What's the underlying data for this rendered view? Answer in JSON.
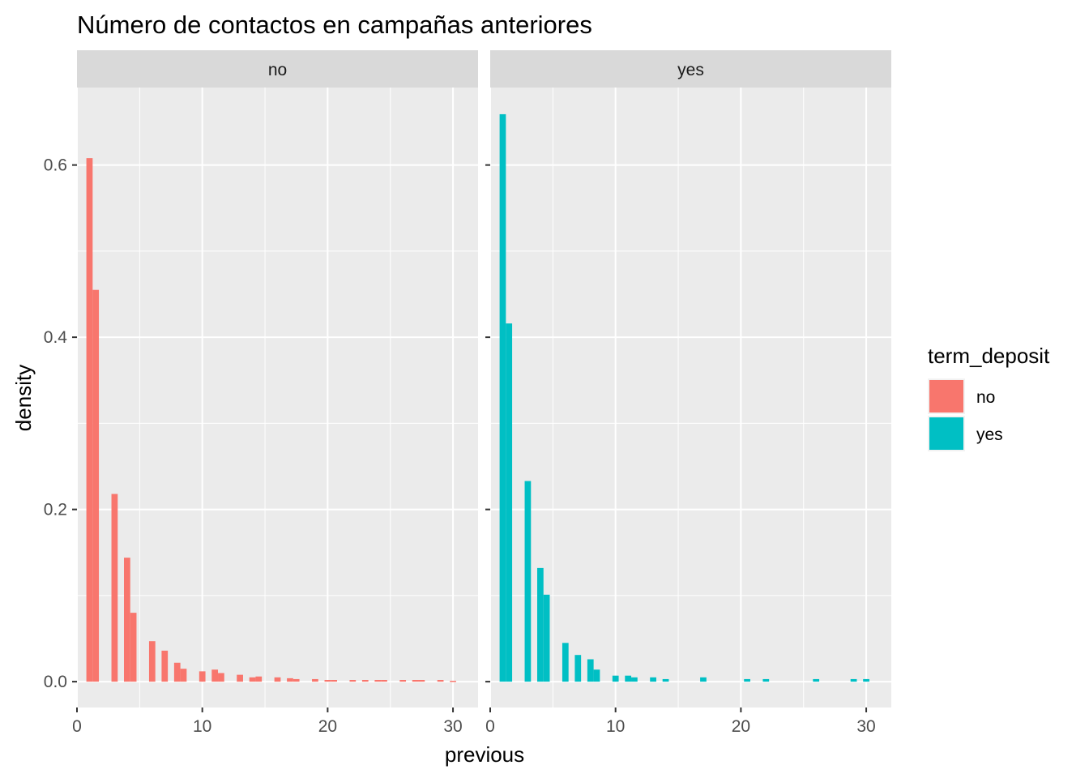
{
  "chart_data": {
    "type": "bar",
    "title": "Número de contactos en campañas anteriores",
    "xlabel": "previous",
    "ylabel": "density",
    "xlim": [
      0,
      32
    ],
    "ylim": [
      -0.03,
      0.69
    ],
    "x_ticks": [
      0,
      10,
      20,
      30
    ],
    "y_ticks": [
      0.0,
      0.2,
      0.4,
      0.6
    ],
    "x_tick_labels": [
      "0",
      "10",
      "20",
      "30"
    ],
    "y_tick_labels": [
      "0.0",
      "0.2",
      "0.4",
      "0.6"
    ],
    "grid": true,
    "legend": {
      "title": "term_deposit",
      "position": "right",
      "entries": [
        {
          "label": "no",
          "color": "#F8766D"
        },
        {
          "label": "yes",
          "color": "#00BFC4"
        }
      ]
    },
    "panels": [
      {
        "strip": "no",
        "color": "#F8766D",
        "bin_width": 0.5,
        "bins": [
          {
            "x": 1,
            "y": 0.608
          },
          {
            "x": 1.5,
            "y": 0.455
          },
          {
            "x": 3,
            "y": 0.218
          },
          {
            "x": 4,
            "y": 0.144
          },
          {
            "x": 4.5,
            "y": 0.08
          },
          {
            "x": 6,
            "y": 0.047
          },
          {
            "x": 7,
            "y": 0.036
          },
          {
            "x": 8,
            "y": 0.022
          },
          {
            "x": 8.5,
            "y": 0.015
          },
          {
            "x": 10,
            "y": 0.012
          },
          {
            "x": 11,
            "y": 0.014
          },
          {
            "x": 11.5,
            "y": 0.01
          },
          {
            "x": 13,
            "y": 0.008
          },
          {
            "x": 14,
            "y": 0.005
          },
          {
            "x": 14.5,
            "y": 0.006
          },
          {
            "x": 16,
            "y": 0.005
          },
          {
            "x": 17,
            "y": 0.004
          },
          {
            "x": 17.5,
            "y": 0.003
          },
          {
            "x": 19,
            "y": 0.003
          },
          {
            "x": 20,
            "y": 0.002
          },
          {
            "x": 20.5,
            "y": 0.002
          },
          {
            "x": 22,
            "y": 0.002
          },
          {
            "x": 23,
            "y": 0.002
          },
          {
            "x": 24,
            "y": 0.002
          },
          {
            "x": 24.5,
            "y": 0.002
          },
          {
            "x": 26,
            "y": 0.002
          },
          {
            "x": 27,
            "y": 0.002
          },
          {
            "x": 27.5,
            "y": 0.002
          },
          {
            "x": 29,
            "y": 0.002
          },
          {
            "x": 30,
            "y": 0.001
          }
        ]
      },
      {
        "strip": "yes",
        "color": "#00BFC4",
        "bin_width": 0.5,
        "bins": [
          {
            "x": 1,
            "y": 0.659
          },
          {
            "x": 1.5,
            "y": 0.416
          },
          {
            "x": 3,
            "y": 0.233
          },
          {
            "x": 4,
            "y": 0.132
          },
          {
            "x": 4.5,
            "y": 0.101
          },
          {
            "x": 6,
            "y": 0.045
          },
          {
            "x": 7,
            "y": 0.031
          },
          {
            "x": 8,
            "y": 0.026
          },
          {
            "x": 8.5,
            "y": 0.014
          },
          {
            "x": 10,
            "y": 0.007
          },
          {
            "x": 11,
            "y": 0.007
          },
          {
            "x": 11.5,
            "y": 0.005
          },
          {
            "x": 13,
            "y": 0.005
          },
          {
            "x": 14,
            "y": 0.003
          },
          {
            "x": 17,
            "y": 0.005
          },
          {
            "x": 20.5,
            "y": 0.003
          },
          {
            "x": 22,
            "y": 0.003
          },
          {
            "x": 26,
            "y": 0.003
          },
          {
            "x": 29,
            "y": 0.003
          },
          {
            "x": 30,
            "y": 0.003
          }
        ]
      }
    ]
  }
}
